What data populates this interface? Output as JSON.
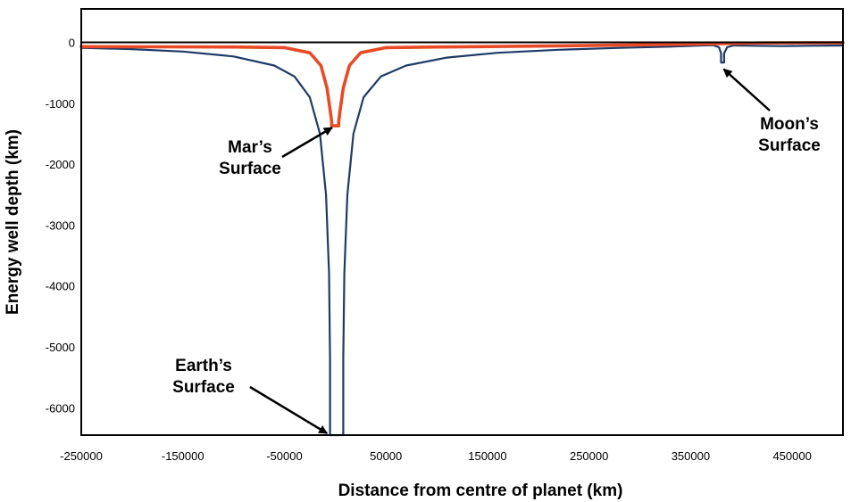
{
  "chart_data": {
    "type": "line",
    "title": "",
    "xlabel": "Distance from centre of planet (km)",
    "ylabel": "Energy well depth (km)",
    "xlim": [
      -250000,
      500000
    ],
    "ylim": [
      -6450,
      550
    ],
    "grid": false,
    "legend": "none",
    "x_ticks": [
      -250000,
      -150000,
      -50000,
      50000,
      150000,
      250000,
      350000,
      450000
    ],
    "y_ticks": [
      0,
      -1000,
      -2000,
      -3000,
      -4000,
      -5000,
      -6000
    ],
    "zero_line_color": "#000000",
    "series": [
      {
        "color": "#1e3a66",
        "x": [
          -250000,
          -200000,
          -150000,
          -100000,
          -60000,
          -40000,
          -25000,
          -15000,
          -9000,
          -6000,
          -5000,
          -5000,
          8000,
          8000,
          9000,
          12000,
          18000,
          28000,
          45000,
          70000,
          110000,
          160000,
          220000,
          280000,
          330000,
          360000,
          372000,
          378000,
          380000,
          380000,
          383000,
          383000,
          386000,
          392000,
          410000,
          440000,
          470000,
          500000
        ],
        "y": [
          -90,
          -110,
          -150,
          -230,
          -380,
          -560,
          -900,
          -1500,
          -2500,
          -3800,
          -5200,
          -6450,
          -6450,
          -5200,
          -3800,
          -2500,
          -1500,
          -900,
          -560,
          -380,
          -250,
          -170,
          -120,
          -90,
          -70,
          -50,
          -45,
          -80,
          -180,
          -330,
          -330,
          -180,
          -80,
          -50,
          -55,
          -60,
          -55,
          -50
        ]
      },
      {
        "color": "#e84a27",
        "x": [
          -250000,
          -100000,
          -50000,
          -25000,
          -14000,
          -8000,
          -5000,
          -3500,
          -3500,
          3500,
          3500,
          5000,
          8000,
          14000,
          25000,
          50000,
          100000,
          200000,
          300000,
          380000,
          420000,
          500000
        ],
        "y": [
          -70,
          -75,
          -85,
          -170,
          -380,
          -750,
          -1100,
          -1300,
          -1370,
          -1370,
          -1300,
          -1100,
          -750,
          -380,
          -170,
          -85,
          -75,
          -60,
          -40,
          -20,
          -10,
          -5
        ]
      }
    ],
    "annotations": [
      {
        "text_lines": [
          "Mar’s",
          "Surface"
        ],
        "target": [
          0,
          -1370
        ]
      },
      {
        "text_lines": [
          "Earth’s",
          "Surface"
        ],
        "target": [
          -5000,
          -6450
        ]
      },
      {
        "text_lines": [
          "Moon’s",
          "Surface"
        ],
        "target": [
          380000,
          -400
        ]
      }
    ]
  }
}
